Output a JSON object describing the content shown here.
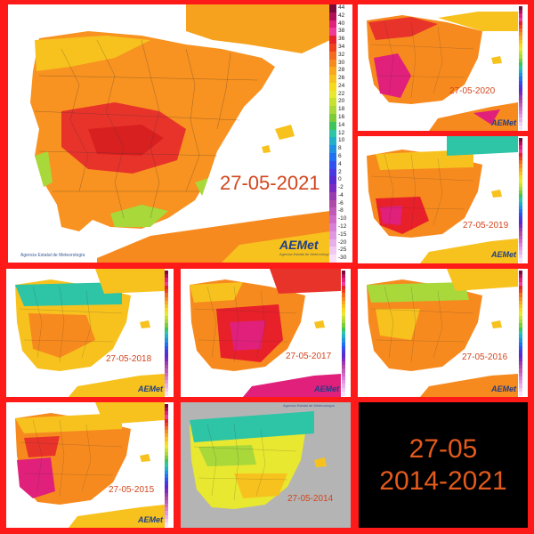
{
  "main_map": {
    "date": "27-05-2021",
    "agency": "Agencia Estatal de Meteorología",
    "logo": "AEMet",
    "logo_sub": "Agencia Estatal de Meteorología",
    "legend_ticks": [
      "44",
      "42",
      "40",
      "38",
      "36",
      "34",
      "32",
      "30",
      "28",
      "26",
      "24",
      "22",
      "20",
      "18",
      "16",
      "14",
      "12",
      "10",
      "8",
      "6",
      "4",
      "2",
      "0",
      "-2",
      "-4",
      "-6",
      "-8",
      "-10",
      "-12",
      "-15",
      "-20",
      "-25",
      "-30"
    ]
  },
  "small_maps": [
    {
      "date": "27-05-2020",
      "logo": "AEMet"
    },
    {
      "date": "27-05-2019",
      "logo": "AEMet"
    },
    {
      "date": "27-05-2018",
      "logo": "AEMet"
    },
    {
      "date": "27-05-2017",
      "logo": "AEMet"
    },
    {
      "date": "27-05-2016",
      "logo": "AEMet"
    },
    {
      "date": "27-05-2015",
      "logo": "AEMet"
    },
    {
      "date": "27-05-2014",
      "agency": "Agencia Estatal de Meteorología"
    }
  ],
  "summary": {
    "day": "27-05",
    "years": "2014-2021"
  },
  "colors": {
    "frame": "#ff1a1a",
    "summary_bg": "#000000",
    "summary_text": "#e25a1c",
    "date_text": "#d2461e",
    "hot": "#e8202a",
    "very_hot": "#e0207a",
    "warm": "#f78a1e",
    "mild": "#f7c21e",
    "cool": "#a8d83a",
    "cold": "#2ec4a6",
    "sea": "#ffffff"
  }
}
